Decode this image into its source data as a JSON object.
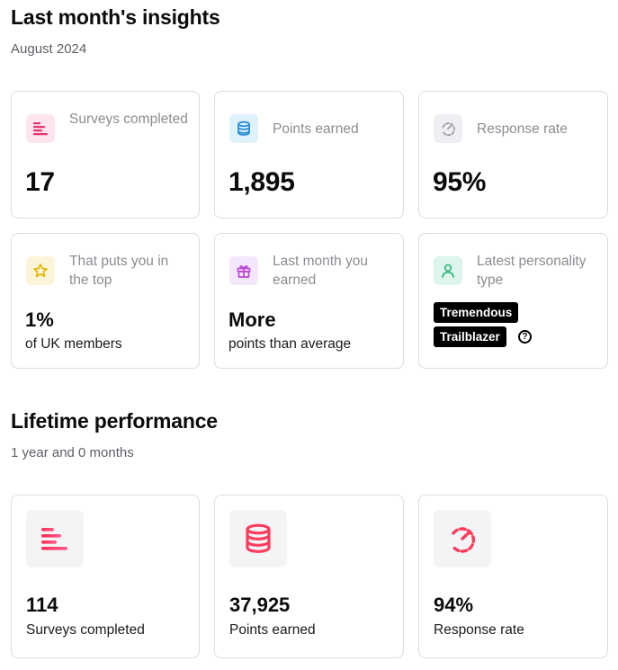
{
  "last_month": {
    "title": "Last month's insights",
    "period": "August 2024",
    "cards": {
      "surveys": {
        "label": "Surveys completed",
        "value": "17",
        "icon": "surveys-icon",
        "chip_color": "#fde4ee"
      },
      "points": {
        "label": "Points earned",
        "value": "1,895",
        "icon": "coins-icon",
        "chip_color": "#dff1fb"
      },
      "response": {
        "label": "Response rate",
        "value": "95%",
        "icon": "gauge-icon",
        "chip_color": "#eeeff2"
      },
      "top": {
        "label": "That puts you in the top",
        "value": "1%",
        "sub": "of UK members",
        "icon": "star-icon",
        "chip_color": "#fdf5d9"
      },
      "earned": {
        "label": "Last month you earned",
        "value": "More",
        "sub": "points than average",
        "icon": "gift-icon",
        "chip_color": "#f4e6fb"
      },
      "personality": {
        "label": "Latest personality type",
        "tag1": "Tremendous",
        "tag2": "Trailblazer",
        "help": "?",
        "icon": "person-icon",
        "chip_color": "#ddf5ea"
      }
    }
  },
  "lifetime": {
    "title": "Lifetime performance",
    "period": "1 year and 0 months",
    "cards": {
      "surveys": {
        "value": "114",
        "label": "Surveys completed",
        "icon": "surveys-icon"
      },
      "points": {
        "value": "37,925",
        "label": "Points earned",
        "icon": "coins-icon"
      },
      "response": {
        "value": "94%",
        "label": "Response rate",
        "icon": "gauge-icon"
      }
    }
  }
}
